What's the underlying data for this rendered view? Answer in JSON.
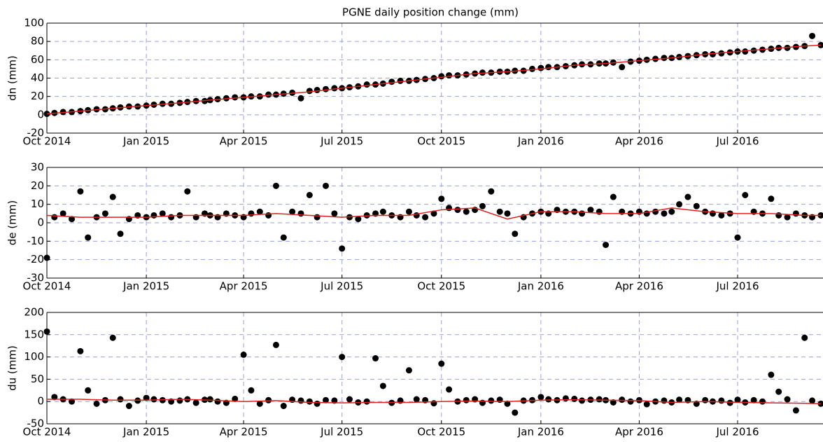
{
  "chart_data": [
    {
      "type": "scatter",
      "title": "PGNE daily position change (mm)",
      "ylabel": "dn (mm)",
      "xlim": [
        "2014-10-01",
        "2016-09-18"
      ],
      "ylim": [
        -20,
        100
      ],
      "yticks": [
        -20,
        0,
        20,
        40,
        60,
        80,
        100
      ],
      "grid": true,
      "xticks": [
        {
          "value": "2014-10-01",
          "label": "Oct 2014"
        },
        {
          "value": "2015-01-01",
          "label": "Jan 2015"
        },
        {
          "value": "2015-04-01",
          "label": "Apr 2015"
        },
        {
          "value": "2015-07-01",
          "label": "Jul 2015"
        },
        {
          "value": "2015-10-01",
          "label": "Oct 2015"
        },
        {
          "value": "2016-01-01",
          "label": "Jan 2016"
        },
        {
          "value": "2016-04-01",
          "label": "Apr 2016"
        },
        {
          "value": "2016-07-01",
          "label": "Jul 2016"
        }
      ],
      "series": [
        {
          "type": "scatter",
          "color": "#000000",
          "x": [
            "2014-10-01",
            "2014-10-08",
            "2014-10-16",
            "2014-10-24",
            "2014-11-01",
            "2014-11-08",
            "2014-11-16",
            "2014-11-24",
            "2014-12-01",
            "2014-12-08",
            "2014-12-16",
            "2014-12-24",
            "2015-01-01",
            "2015-01-08",
            "2015-01-16",
            "2015-01-24",
            "2015-02-01",
            "2015-02-08",
            "2015-02-16",
            "2015-02-24",
            "2015-03-01",
            "2015-03-08",
            "2015-03-16",
            "2015-03-24",
            "2015-04-01",
            "2015-04-08",
            "2015-04-16",
            "2015-04-24",
            "2015-05-01",
            "2015-05-08",
            "2015-05-16",
            "2015-05-24",
            "2015-06-01",
            "2015-06-08",
            "2015-06-16",
            "2015-06-24",
            "2015-07-01",
            "2015-07-08",
            "2015-07-16",
            "2015-07-24",
            "2015-08-01",
            "2015-08-08",
            "2015-08-16",
            "2015-08-24",
            "2015-09-01",
            "2015-09-08",
            "2015-09-16",
            "2015-09-24",
            "2015-10-01",
            "2015-10-08",
            "2015-10-16",
            "2015-10-24",
            "2015-11-01",
            "2015-11-08",
            "2015-11-16",
            "2015-11-24",
            "2015-12-01",
            "2015-12-08",
            "2015-12-16",
            "2015-12-24",
            "2016-01-01",
            "2016-01-08",
            "2016-01-16",
            "2016-01-24",
            "2016-02-01",
            "2016-02-08",
            "2016-02-16",
            "2016-02-24",
            "2016-03-01",
            "2016-03-08",
            "2016-03-16",
            "2016-03-24",
            "2016-04-01",
            "2016-04-08",
            "2016-04-16",
            "2016-04-24",
            "2016-05-01",
            "2016-05-08",
            "2016-05-16",
            "2016-05-24",
            "2016-06-01",
            "2016-06-08",
            "2016-06-16",
            "2016-06-24",
            "2016-07-01",
            "2016-07-08",
            "2016-07-16",
            "2016-07-24",
            "2016-08-01",
            "2016-08-08",
            "2016-08-16",
            "2016-08-24",
            "2016-09-01",
            "2016-09-08",
            "2016-09-16"
          ],
          "values": [
            1,
            2,
            3,
            3,
            4,
            5,
            6,
            6,
            7,
            8,
            9,
            9,
            10,
            11,
            12,
            12,
            13,
            14,
            15,
            15,
            16,
            17,
            18,
            19,
            19,
            20,
            20,
            22,
            22,
            23,
            24,
            18,
            26,
            27,
            28,
            29,
            29,
            30,
            31,
            33,
            33,
            34,
            36,
            37,
            37,
            38,
            39,
            40,
            42,
            43,
            43,
            44,
            45,
            46,
            46,
            47,
            47,
            48,
            48,
            50,
            51,
            52,
            52,
            53,
            54,
            55,
            55,
            56,
            56,
            57,
            52,
            58,
            59,
            60,
            61,
            62,
            62,
            63,
            64,
            65,
            66,
            66,
            67,
            68,
            69,
            69,
            70,
            71,
            72,
            73,
            73,
            74,
            75,
            86,
            76
          ]
        },
        {
          "type": "line",
          "color": "#e02020",
          "x": [
            "2014-10-01",
            "2014-11-01",
            "2014-12-01",
            "2015-01-01",
            "2015-02-01",
            "2015-03-01",
            "2015-04-01",
            "2015-05-01",
            "2015-06-01",
            "2015-07-01",
            "2015-08-01",
            "2015-09-01",
            "2015-10-01",
            "2015-11-01",
            "2015-12-01",
            "2016-01-01",
            "2016-02-01",
            "2016-03-01",
            "2016-04-01",
            "2016-05-01",
            "2016-06-01",
            "2016-07-01",
            "2016-08-01",
            "2016-09-01",
            "2016-09-16"
          ],
          "values": [
            1,
            4,
            7,
            10,
            13,
            16,
            19,
            22,
            25,
            29,
            33,
            37,
            41,
            45,
            47,
            50,
            54,
            56,
            59,
            62,
            66,
            69,
            72,
            75,
            76
          ]
        }
      ]
    },
    {
      "type": "scatter",
      "ylabel": "de (mm)",
      "xlim": [
        "2014-10-01",
        "2016-09-18"
      ],
      "ylim": [
        -30,
        30
      ],
      "yticks": [
        -30,
        -20,
        -10,
        0,
        10,
        20,
        30
      ],
      "grid": true,
      "xticks": [
        {
          "value": "2014-10-01",
          "label": "Oct 2014"
        },
        {
          "value": "2015-01-01",
          "label": "Jan 2015"
        },
        {
          "value": "2015-04-01",
          "label": "Apr 2015"
        },
        {
          "value": "2015-07-01",
          "label": "Jul 2015"
        },
        {
          "value": "2015-10-01",
          "label": "Oct 2015"
        },
        {
          "value": "2016-01-01",
          "label": "Jan 2016"
        },
        {
          "value": "2016-04-01",
          "label": "Apr 2016"
        },
        {
          "value": "2016-07-01",
          "label": "Jul 2016"
        }
      ],
      "series": [
        {
          "type": "scatter",
          "color": "#000000",
          "x": [
            "2014-10-01",
            "2014-10-08",
            "2014-10-16",
            "2014-10-24",
            "2014-11-01",
            "2014-11-08",
            "2014-11-16",
            "2014-11-24",
            "2014-12-01",
            "2014-12-08",
            "2014-12-16",
            "2014-12-24",
            "2015-01-01",
            "2015-01-08",
            "2015-01-16",
            "2015-01-24",
            "2015-02-01",
            "2015-02-08",
            "2015-02-16",
            "2015-02-24",
            "2015-03-01",
            "2015-03-08",
            "2015-03-16",
            "2015-03-24",
            "2015-04-01",
            "2015-04-08",
            "2015-04-16",
            "2015-04-24",
            "2015-05-01",
            "2015-05-08",
            "2015-05-16",
            "2015-05-24",
            "2015-06-01",
            "2015-06-08",
            "2015-06-16",
            "2015-06-24",
            "2015-07-01",
            "2015-07-08",
            "2015-07-16",
            "2015-07-24",
            "2015-08-01",
            "2015-08-08",
            "2015-08-16",
            "2015-08-24",
            "2015-09-01",
            "2015-09-08",
            "2015-09-16",
            "2015-09-24",
            "2015-10-01",
            "2015-10-08",
            "2015-10-16",
            "2015-10-24",
            "2015-11-01",
            "2015-11-08",
            "2015-11-16",
            "2015-11-24",
            "2015-12-01",
            "2015-12-08",
            "2015-12-16",
            "2015-12-24",
            "2016-01-01",
            "2016-01-08",
            "2016-01-16",
            "2016-01-24",
            "2016-02-01",
            "2016-02-08",
            "2016-02-16",
            "2016-02-24",
            "2016-03-01",
            "2016-03-08",
            "2016-03-16",
            "2016-03-24",
            "2016-04-01",
            "2016-04-08",
            "2016-04-16",
            "2016-04-24",
            "2016-05-01",
            "2016-05-08",
            "2016-05-16",
            "2016-05-24",
            "2016-06-01",
            "2016-06-08",
            "2016-06-16",
            "2016-06-24",
            "2016-07-01",
            "2016-07-08",
            "2016-07-16",
            "2016-07-24",
            "2016-08-01",
            "2016-08-08",
            "2016-08-16",
            "2016-08-24",
            "2016-09-01",
            "2016-09-08",
            "2016-09-16"
          ],
          "values": [
            -19,
            3,
            5,
            2,
            17,
            -8,
            3,
            5,
            14,
            -6,
            2,
            4,
            3,
            4,
            5,
            3,
            4,
            17,
            3,
            5,
            4,
            3,
            5,
            4,
            3,
            5,
            6,
            4,
            20,
            -8,
            6,
            5,
            15,
            3,
            20,
            5,
            -14,
            3,
            2,
            4,
            5,
            6,
            4,
            3,
            6,
            4,
            3,
            5,
            13,
            8,
            7,
            6,
            7,
            9,
            17,
            6,
            5,
            -6,
            3,
            5,
            6,
            5,
            7,
            6,
            6,
            5,
            7,
            6,
            -12,
            14,
            6,
            5,
            6,
            5,
            6,
            5,
            6,
            10,
            14,
            9,
            6,
            5,
            4,
            5,
            -8,
            15,
            6,
            5,
            13,
            4,
            3,
            5,
            4,
            3,
            4
          ]
        },
        {
          "type": "line",
          "color": "#e02020",
          "x": [
            "2014-10-01",
            "2014-11-01",
            "2014-12-01",
            "2015-01-01",
            "2015-02-01",
            "2015-03-01",
            "2015-04-01",
            "2015-05-01",
            "2015-06-01",
            "2015-07-01",
            "2015-08-01",
            "2015-09-01",
            "2015-10-01",
            "2015-11-01",
            "2015-12-01",
            "2016-01-01",
            "2016-02-01",
            "2016-03-01",
            "2016-04-01",
            "2016-05-01",
            "2016-06-01",
            "2016-07-01",
            "2016-08-01",
            "2016-09-01",
            "2016-09-16"
          ],
          "values": [
            4,
            3,
            3,
            3,
            4,
            4,
            4,
            5,
            4,
            3,
            4,
            4,
            7,
            8,
            2,
            6,
            6,
            5,
            5,
            8,
            6,
            5,
            5,
            4,
            4
          ]
        }
      ]
    },
    {
      "type": "scatter",
      "ylabel": "du (mm)",
      "xlim": [
        "2014-10-01",
        "2016-09-18"
      ],
      "ylim": [
        -50,
        200
      ],
      "yticks": [
        -50,
        0,
        50,
        100,
        150,
        200
      ],
      "grid": true,
      "xticks": [
        {
          "value": "2014-10-01",
          "label": "Oct 2014"
        },
        {
          "value": "2015-01-01",
          "label": "Jan 2015"
        },
        {
          "value": "2015-04-01",
          "label": "Apr 2015"
        },
        {
          "value": "2015-07-01",
          "label": "Jul 2015"
        },
        {
          "value": "2015-10-01",
          "label": "Oct 2015"
        },
        {
          "value": "2016-01-01",
          "label": "Jan 2016"
        },
        {
          "value": "2016-04-01",
          "label": "Apr 2016"
        },
        {
          "value": "2016-07-01",
          "label": "Jul 2016"
        }
      ],
      "series": [
        {
          "type": "scatter",
          "color": "#000000",
          "x": [
            "2014-10-01",
            "2014-10-08",
            "2014-10-16",
            "2014-10-24",
            "2014-11-01",
            "2014-11-08",
            "2014-11-16",
            "2014-11-24",
            "2014-12-01",
            "2014-12-08",
            "2014-12-16",
            "2014-12-24",
            "2015-01-01",
            "2015-01-08",
            "2015-01-16",
            "2015-01-24",
            "2015-02-01",
            "2015-02-08",
            "2015-02-16",
            "2015-02-24",
            "2015-03-01",
            "2015-03-08",
            "2015-03-16",
            "2015-03-24",
            "2015-04-01",
            "2015-04-08",
            "2015-04-16",
            "2015-04-24",
            "2015-05-01",
            "2015-05-08",
            "2015-05-16",
            "2015-05-24",
            "2015-06-01",
            "2015-06-08",
            "2015-06-16",
            "2015-06-24",
            "2015-07-01",
            "2015-07-08",
            "2015-07-16",
            "2015-07-24",
            "2015-08-01",
            "2015-08-08",
            "2015-08-16",
            "2015-08-24",
            "2015-09-01",
            "2015-09-08",
            "2015-09-16",
            "2015-09-24",
            "2015-10-01",
            "2015-10-08",
            "2015-10-16",
            "2015-10-24",
            "2015-11-01",
            "2015-11-08",
            "2015-11-16",
            "2015-11-24",
            "2015-12-01",
            "2015-12-08",
            "2015-12-16",
            "2015-12-24",
            "2016-01-01",
            "2016-01-08",
            "2016-01-16",
            "2016-01-24",
            "2016-02-01",
            "2016-02-08",
            "2016-02-16",
            "2016-02-24",
            "2016-03-01",
            "2016-03-08",
            "2016-03-16",
            "2016-03-24",
            "2016-04-01",
            "2016-04-08",
            "2016-04-16",
            "2016-04-24",
            "2016-05-01",
            "2016-05-08",
            "2016-05-16",
            "2016-05-24",
            "2016-06-01",
            "2016-06-08",
            "2016-06-16",
            "2016-06-24",
            "2016-07-01",
            "2016-07-08",
            "2016-07-16",
            "2016-07-24",
            "2016-08-01",
            "2016-08-08",
            "2016-08-16",
            "2016-08-24",
            "2016-09-01",
            "2016-09-08",
            "2016-09-16"
          ],
          "values": [
            157,
            10,
            5,
            0,
            113,
            25,
            -5,
            3,
            143,
            5,
            -10,
            2,
            8,
            5,
            3,
            0,
            2,
            5,
            -3,
            4,
            5,
            0,
            -3,
            6,
            105,
            25,
            -5,
            3,
            127,
            -10,
            4,
            2,
            0,
            -5,
            3,
            2,
            100,
            5,
            -2,
            0,
            97,
            35,
            -3,
            2,
            70,
            5,
            3,
            -4,
            85,
            27,
            0,
            3,
            5,
            -3,
            2,
            4,
            -5,
            -25,
            2,
            3,
            10,
            5,
            3,
            7,
            6,
            2,
            4,
            5,
            3,
            -2,
            4,
            0,
            3,
            -6,
            0,
            2,
            -2,
            4,
            3,
            -5,
            3,
            0,
            2,
            -3,
            4,
            -2,
            3,
            0,
            60,
            22,
            5,
            -20,
            143,
            2,
            -5
          ]
        },
        {
          "type": "line",
          "color": "#e02020",
          "x": [
            "2014-10-01",
            "2014-11-01",
            "2014-12-01",
            "2015-01-01",
            "2015-02-01",
            "2015-03-01",
            "2015-04-01",
            "2015-05-01",
            "2015-06-01",
            "2015-07-01",
            "2015-08-01",
            "2015-09-01",
            "2015-10-01",
            "2015-11-01",
            "2015-12-01",
            "2016-01-01",
            "2016-02-01",
            "2016-03-01",
            "2016-04-01",
            "2016-05-01",
            "2016-06-01",
            "2016-07-01",
            "2016-08-01",
            "2016-09-01",
            "2016-09-16"
          ],
          "values": [
            5,
            5,
            3,
            3,
            5,
            3,
            0,
            2,
            -2,
            -3,
            -2,
            -2,
            0,
            1,
            0,
            3,
            4,
            3,
            2,
            -2,
            0,
            -2,
            -3,
            -4,
            -5
          ]
        }
      ]
    }
  ]
}
